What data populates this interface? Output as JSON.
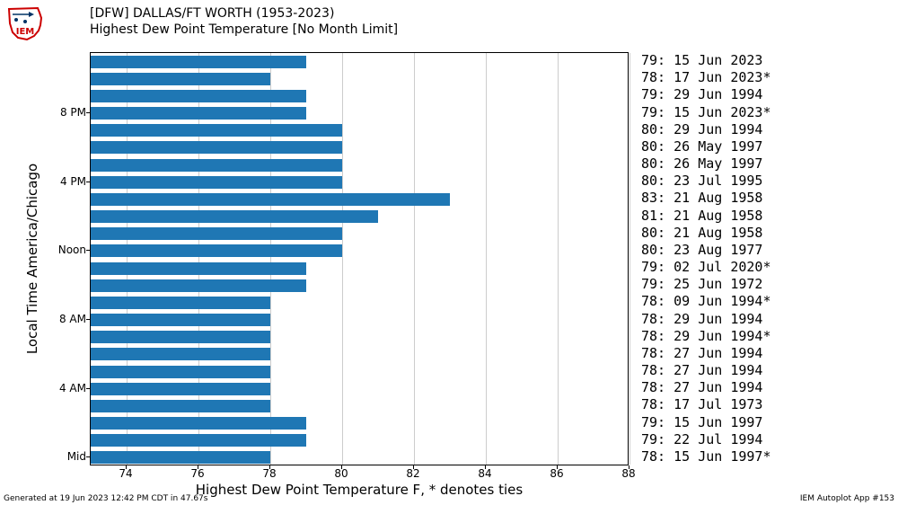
{
  "header": {
    "line1": "[DFW] DALLAS/FT WORTH (1953-2023)",
    "line2": "Highest Dew Point Temperature [No Month Limit]"
  },
  "chart": {
    "type": "bar-horizontal",
    "xlabel": "Highest Dew Point Temperature F, * denotes ties",
    "ylabel": "Local Time America/Chicago",
    "xlim": [
      73,
      88
    ],
    "xtick_step": 2,
    "grid_color": "#cccccc",
    "bar_color": "#1f77b4",
    "background_color": "#ffffff",
    "x_ticks": [
      74,
      76,
      78,
      80,
      82,
      84,
      86,
      88
    ],
    "y_tick_hours": [
      0,
      4,
      8,
      12,
      16,
      20
    ],
    "y_tick_labels": [
      "Mid",
      "4 AM",
      "8 AM",
      "Noon",
      "4 PM",
      "8 PM"
    ],
    "label_fontsize": 15,
    "tick_fontsize": 12,
    "hours": [
      {
        "hour": 23,
        "value": 79,
        "label": "79: 15 Jun 2023"
      },
      {
        "hour": 22,
        "value": 78,
        "label": "78: 17 Jun 2023*"
      },
      {
        "hour": 21,
        "value": 79,
        "label": "79: 29 Jun 1994"
      },
      {
        "hour": 20,
        "value": 79,
        "label": "79: 15 Jun 2023*"
      },
      {
        "hour": 19,
        "value": 80,
        "label": "80: 29 Jun 1994"
      },
      {
        "hour": 18,
        "value": 80,
        "label": "80: 26 May 1997"
      },
      {
        "hour": 17,
        "value": 80,
        "label": "80: 26 May 1997"
      },
      {
        "hour": 16,
        "value": 80,
        "label": "80: 23 Jul 1995"
      },
      {
        "hour": 15,
        "value": 83,
        "label": "83: 21 Aug 1958"
      },
      {
        "hour": 14,
        "value": 81,
        "label": "81: 21 Aug 1958"
      },
      {
        "hour": 13,
        "value": 80,
        "label": "80: 21 Aug 1958"
      },
      {
        "hour": 12,
        "value": 80,
        "label": "80: 23 Aug 1977"
      },
      {
        "hour": 11,
        "value": 79,
        "label": "79: 02 Jul 2020*"
      },
      {
        "hour": 10,
        "value": 79,
        "label": "79: 25 Jun 1972"
      },
      {
        "hour": 9,
        "value": 78,
        "label": "78: 09 Jun 1994*"
      },
      {
        "hour": 8,
        "value": 78,
        "label": "78: 29 Jun 1994"
      },
      {
        "hour": 7,
        "value": 78,
        "label": "78: 29 Jun 1994*"
      },
      {
        "hour": 6,
        "value": 78,
        "label": "78: 27 Jun 1994"
      },
      {
        "hour": 5,
        "value": 78,
        "label": "78: 27 Jun 1994"
      },
      {
        "hour": 4,
        "value": 78,
        "label": "78: 27 Jun 1994"
      },
      {
        "hour": 3,
        "value": 78,
        "label": "78: 17 Jul 1973"
      },
      {
        "hour": 2,
        "value": 79,
        "label": "79: 15 Jun 1997"
      },
      {
        "hour": 1,
        "value": 79,
        "label": "79: 22 Jul 1994"
      },
      {
        "hour": 0,
        "value": 78,
        "label": "78: 15 Jun 1997*"
      }
    ]
  },
  "footer": {
    "left": "Generated at 19 Jun 2023 12:42 PM CDT in 47.67s",
    "right": "IEM Autoplot App #153"
  },
  "logo": {
    "outline_color": "#cc0000",
    "accent_color": "#003366",
    "text": "IEM"
  }
}
